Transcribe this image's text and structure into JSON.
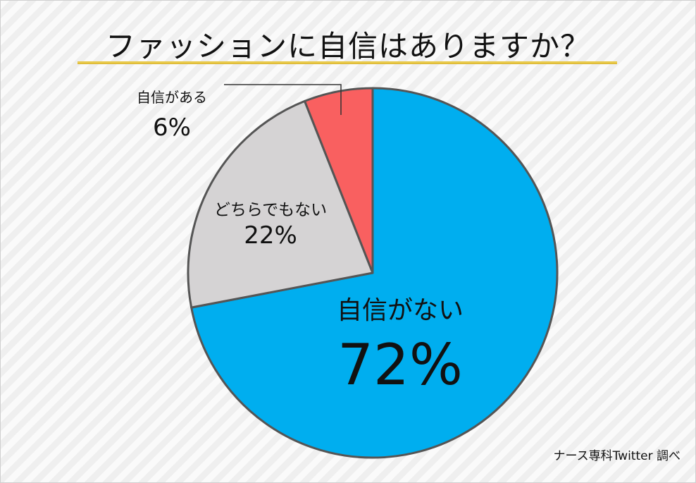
{
  "title": "ファッションに自信はありますか？",
  "credit": "ナース専科Twitter 調べ",
  "colors": {
    "自信がない": "#00aeef",
    "どちらでもない": "#d5d3d4",
    "自信がある": "#f96060",
    "outline": "#555555"
  },
  "chart_data": {
    "type": "pie",
    "title": "ファッションに自信はありますか？",
    "start": "12 o'clock",
    "direction": "clockwise",
    "slices": [
      {
        "label": "自信がない",
        "value": 72,
        "display": "72%"
      },
      {
        "label": "どちらでもない",
        "value": 22,
        "display": "22%"
      },
      {
        "label": "自信がある",
        "value": 6,
        "display": "6%"
      }
    ]
  }
}
